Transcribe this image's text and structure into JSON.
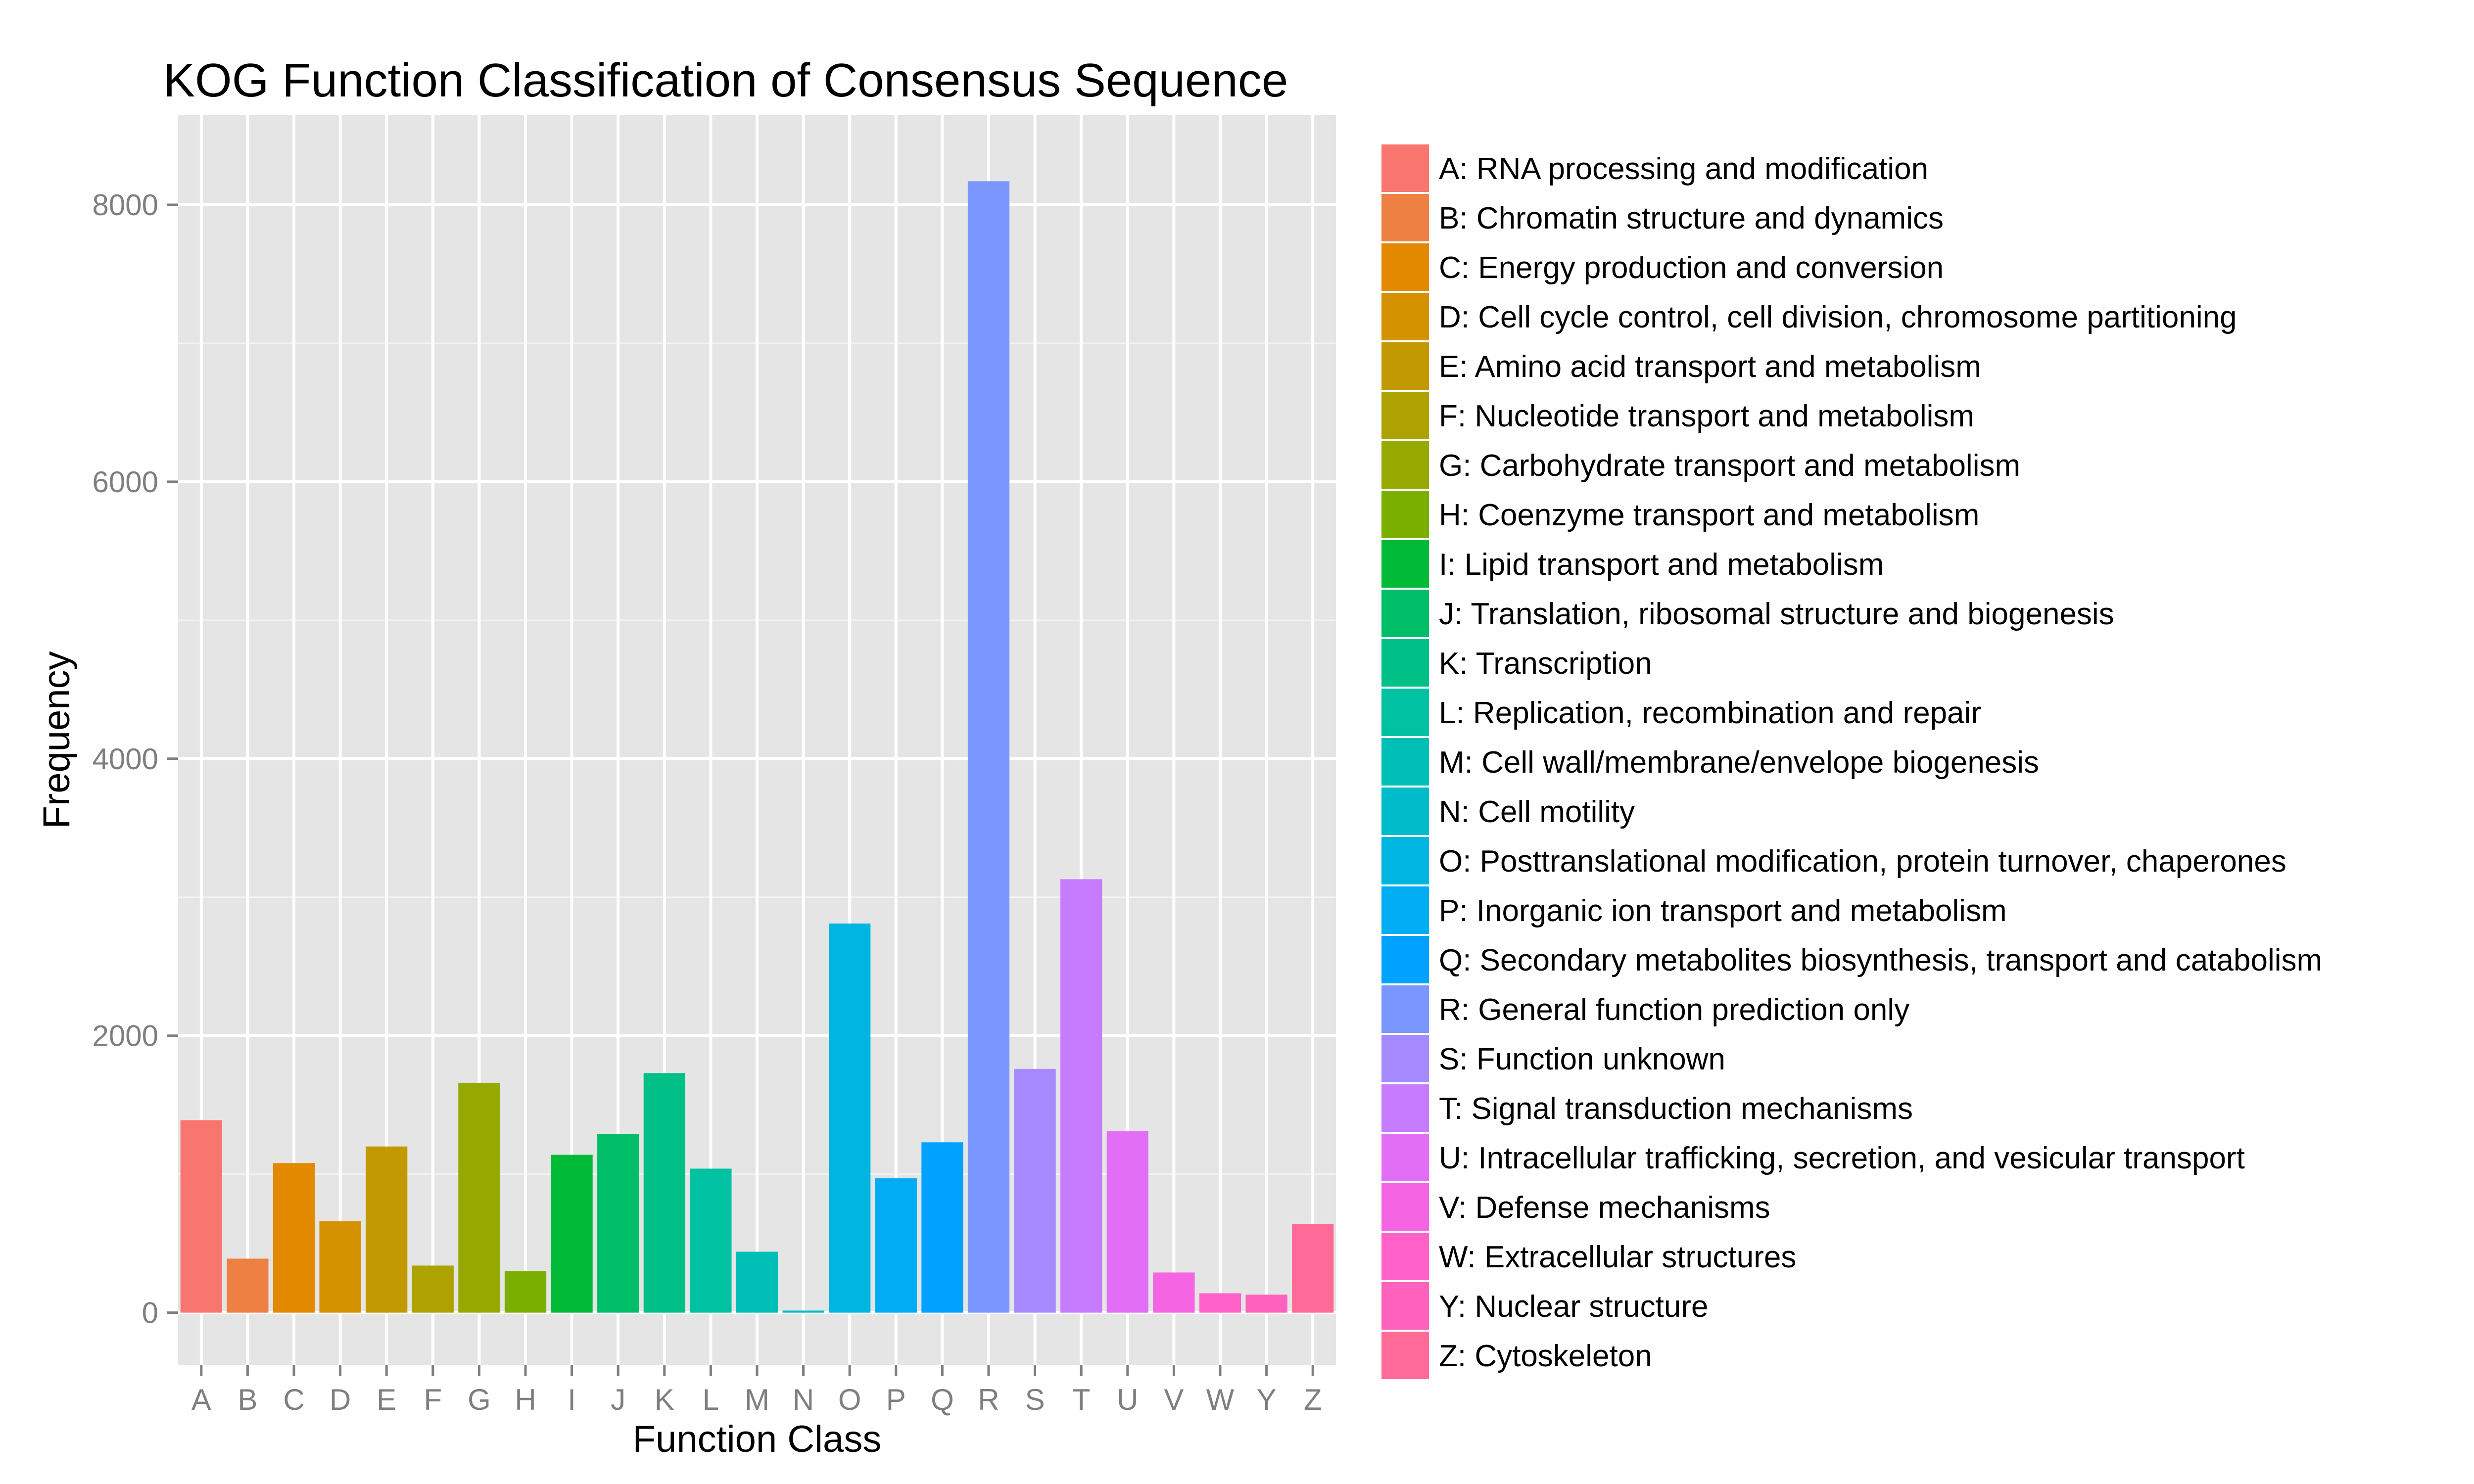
{
  "chart_data": {
    "type": "bar",
    "title": "KOG Function Classification of Consensus Sequence",
    "xlabel": "Function Class",
    "ylabel": "Frequency",
    "ylim": [
      -380,
      8650
    ],
    "yticks": [
      0,
      2000,
      4000,
      6000,
      8000
    ],
    "yticks_labels": [
      "0",
      "2000",
      "4000",
      "6000",
      "8000"
    ],
    "grid": true,
    "legend_position": "right",
    "categories": [
      "A",
      "B",
      "C",
      "D",
      "E",
      "F",
      "G",
      "H",
      "I",
      "J",
      "K",
      "L",
      "M",
      "N",
      "O",
      "P",
      "Q",
      "R",
      "S",
      "T",
      "U",
      "V",
      "W",
      "Y",
      "Z"
    ],
    "values": [
      1390,
      390,
      1080,
      660,
      1200,
      340,
      1660,
      300,
      1140,
      1290,
      1730,
      1040,
      440,
      15,
      2810,
      970,
      1230,
      8170,
      1760,
      3130,
      1310,
      290,
      140,
      130,
      640
    ],
    "colors": [
      "#F8766D",
      "#EE8043",
      "#E38900",
      "#D49200",
      "#C29A00",
      "#AEA200",
      "#96A900",
      "#7AAF00",
      "#00BA38",
      "#00BE67",
      "#00C087",
      "#00C1A2",
      "#00BFB7",
      "#00BCCA",
      "#00B6E0",
      "#00ACF2",
      "#00A2FF",
      "#7997FF",
      "#A58AFF",
      "#C77CFF",
      "#E26EF5",
      "#F564E3",
      "#FF61C9",
      "#FF62BC",
      "#FF6A98"
    ],
    "legend": [
      "A: RNA processing and modification",
      "B: Chromatin structure and dynamics",
      "C: Energy production and conversion",
      "D: Cell cycle control, cell division, chromosome partitioning",
      "E: Amino acid transport and metabolism",
      "F: Nucleotide transport and metabolism",
      "G: Carbohydrate transport and metabolism",
      "H: Coenzyme transport and metabolism",
      "I: Lipid transport and metabolism",
      "J: Translation, ribosomal structure and biogenesis",
      "K: Transcription",
      "L: Replication, recombination and repair",
      "M: Cell wall/membrane/envelope biogenesis",
      "N: Cell motility",
      "O: Posttranslational modification, protein turnover, chaperones",
      "P: Inorganic ion transport and metabolism",
      "Q: Secondary metabolites biosynthesis, transport and catabolism",
      "R: General function prediction only",
      "S: Function unknown",
      "T: Signal transduction mechanisms",
      "U: Intracellular trafficking, secretion, and vesicular transport",
      "V: Defense mechanisms",
      "W: Extracellular structures",
      "Y: Nuclear structure",
      "Z: Cytoskeleton"
    ]
  }
}
